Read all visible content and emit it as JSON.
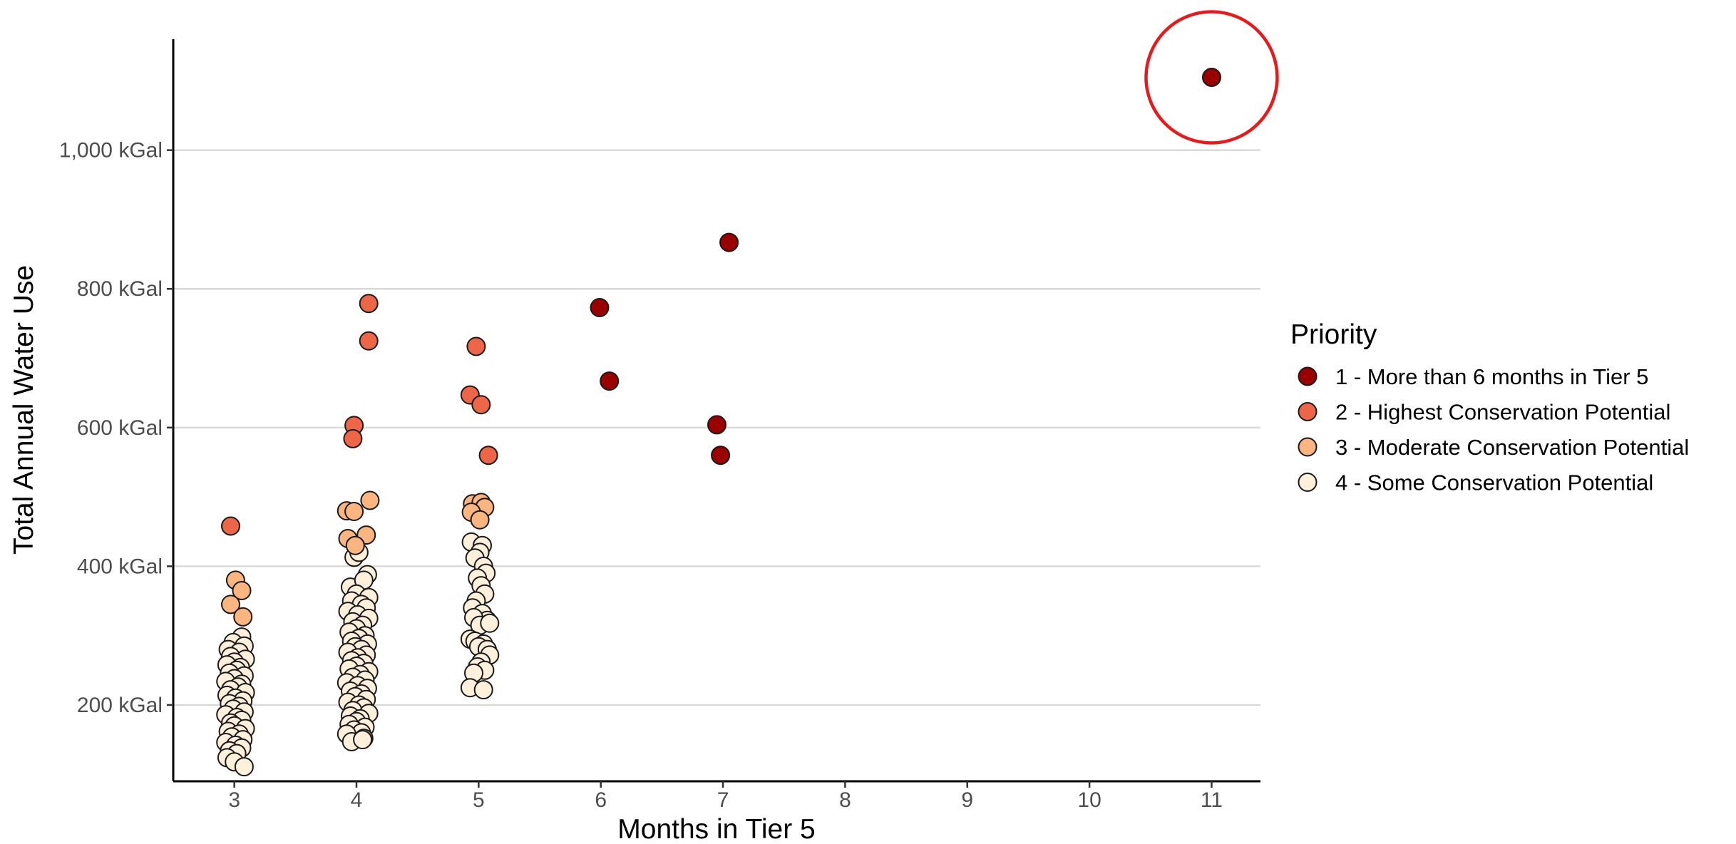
{
  "chart_data": {
    "type": "scatter",
    "title": "",
    "xlabel": "Months in Tier 5",
    "ylabel": "Total Annual Water Use",
    "xlim": [
      2.5,
      11.4
    ],
    "ylim": [
      90,
      1160
    ],
    "x_ticks": [
      3,
      4,
      5,
      6,
      7,
      8,
      9,
      10,
      11
    ],
    "x_tick_labels": [
      "3",
      "4",
      "5",
      "6",
      "7",
      "8",
      "9",
      "10",
      "11"
    ],
    "y_ticks": [
      200,
      400,
      600,
      800,
      1000
    ],
    "y_tick_labels": [
      "200 kGal",
      "400 kGal",
      "600 kGal",
      "800 kGal",
      "1,000 kGal"
    ],
    "grid": "horizontal major lines",
    "legend": {
      "title": "Priority",
      "position": "right",
      "entries": [
        {
          "label": "1 - More than 6 months in Tier 5",
          "color": "#9b0000"
        },
        {
          "label": "2 - Highest Conservation Potential",
          "color": "#ee6648"
        },
        {
          "label": "3 - Moderate Conservation Potential",
          "color": "#fbb581"
        },
        {
          "label": "4 - Some Conservation Potential",
          "color": "#fff0dc"
        }
      ]
    },
    "highlight": {
      "x": 11,
      "y": 1105,
      "color": "#e8191b"
    },
    "series": [
      {
        "name": "1 - More than 6 months in Tier 5",
        "color": "#9b0000",
        "points": [
          [
            11,
            1105
          ],
          [
            7.05,
            867
          ],
          [
            5.99,
            773
          ],
          [
            6.07,
            667
          ],
          [
            6.95,
            604
          ],
          [
            6.98,
            560
          ]
        ]
      },
      {
        "name": "2 - Highest Conservation Potential",
        "color": "#ee6648",
        "points": [
          [
            2.97,
            458
          ],
          [
            4.1,
            779
          ],
          [
            4.1,
            725
          ],
          [
            3.98,
            603
          ],
          [
            3.97,
            584
          ],
          [
            4.98,
            717
          ],
          [
            4.93,
            647
          ],
          [
            5.02,
            633
          ],
          [
            5.08,
            560
          ]
        ]
      },
      {
        "name": "3 - Moderate Conservation Potential",
        "color": "#fbb581",
        "points": [
          [
            3.01,
            380
          ],
          [
            3.06,
            365
          ],
          [
            2.97,
            345
          ],
          [
            3.07,
            327
          ],
          [
            3.92,
            480
          ],
          [
            3.98,
            479
          ],
          [
            4.11,
            495
          ],
          [
            4.08,
            445
          ],
          [
            3.93,
            440
          ],
          [
            3.99,
            430
          ],
          [
            4.95,
            490
          ],
          [
            5.02,
            492
          ],
          [
            5.05,
            485
          ],
          [
            4.94,
            478
          ],
          [
            5.01,
            467
          ]
        ]
      },
      {
        "name": "4 - Some Conservation Potential",
        "color": "#fff0dc",
        "points": [
          [
            3.06,
            298
          ],
          [
            2.99,
            290
          ],
          [
            3.08,
            285
          ],
          [
            2.95,
            280
          ],
          [
            3.04,
            276
          ],
          [
            2.97,
            270
          ],
          [
            3.09,
            266
          ],
          [
            3.0,
            262
          ],
          [
            2.94,
            258
          ],
          [
            3.05,
            254
          ],
          [
            3.02,
            250
          ],
          [
            2.96,
            246
          ],
          [
            3.08,
            242
          ],
          [
            3.0,
            238
          ],
          [
            2.93,
            234
          ],
          [
            3.06,
            230
          ],
          [
            3.03,
            226
          ],
          [
            2.97,
            222
          ],
          [
            3.09,
            218
          ],
          [
            2.94,
            214
          ],
          [
            3.01,
            210
          ],
          [
            3.07,
            206
          ],
          [
            2.96,
            202
          ],
          [
            3.04,
            198
          ],
          [
            2.99,
            194
          ],
          [
            3.08,
            190
          ],
          [
            2.93,
            186
          ],
          [
            3.02,
            182
          ],
          [
            3.06,
            178
          ],
          [
            2.97,
            174
          ],
          [
            3.0,
            170
          ],
          [
            3.09,
            166
          ],
          [
            2.95,
            162
          ],
          [
            3.04,
            158
          ],
          [
            2.98,
            154
          ],
          [
            3.07,
            150
          ],
          [
            2.93,
            146
          ],
          [
            3.01,
            142
          ],
          [
            3.06,
            138
          ],
          [
            2.96,
            134
          ],
          [
            3.02,
            130
          ],
          [
            2.94,
            124
          ],
          [
            3.0,
            118
          ],
          [
            3.08,
            111
          ],
          [
            3.98,
            413
          ],
          [
            4.02,
            420
          ],
          [
            4.09,
            388
          ],
          [
            3.95,
            370
          ],
          [
            4.06,
            380
          ],
          [
            4.0,
            360
          ],
          [
            4.1,
            355
          ],
          [
            3.96,
            350
          ],
          [
            4.04,
            345
          ],
          [
            4.08,
            340
          ],
          [
            3.93,
            335
          ],
          [
            4.01,
            330
          ],
          [
            4.1,
            325
          ],
          [
            3.97,
            320
          ],
          [
            4.05,
            315
          ],
          [
            4.0,
            310
          ],
          [
            3.94,
            305
          ],
          [
            4.07,
            300
          ],
          [
            4.02,
            296
          ],
          [
            3.96,
            292
          ],
          [
            4.09,
            288
          ],
          [
            3.99,
            284
          ],
          [
            4.04,
            280
          ],
          [
            3.93,
            276
          ],
          [
            4.08,
            272
          ],
          [
            4.01,
            268
          ],
          [
            3.96,
            264
          ],
          [
            4.06,
            260
          ],
          [
            4.0,
            256
          ],
          [
            3.94,
            252
          ],
          [
            4.1,
            248
          ],
          [
            4.03,
            244
          ],
          [
            3.97,
            240
          ],
          [
            4.07,
            236
          ],
          [
            3.92,
            232
          ],
          [
            4.01,
            228
          ],
          [
            4.09,
            224
          ],
          [
            3.95,
            220
          ],
          [
            4.04,
            216
          ],
          [
            3.99,
            212
          ],
          [
            4.08,
            208
          ],
          [
            3.93,
            204
          ],
          [
            4.02,
            200
          ],
          [
            4.06,
            196
          ],
          [
            3.97,
            192
          ],
          [
            4.1,
            188
          ],
          [
            3.95,
            184
          ],
          [
            4.03,
            180
          ],
          [
            4.0,
            176
          ],
          [
            3.94,
            172
          ],
          [
            4.07,
            168
          ],
          [
            3.98,
            164
          ],
          [
            4.04,
            160
          ],
          [
            3.92,
            158
          ],
          [
            4.06,
            152
          ],
          [
            3.96,
            147
          ],
          [
            4.05,
            150
          ],
          [
            4.94,
            435
          ],
          [
            5.03,
            430
          ],
          [
            5.01,
            420
          ],
          [
            4.97,
            412
          ],
          [
            5.04,
            400
          ],
          [
            5.06,
            390
          ],
          [
            4.99,
            383
          ],
          [
            5.02,
            372
          ],
          [
            5.05,
            360
          ],
          [
            4.98,
            350
          ],
          [
            4.95,
            340
          ],
          [
            5.03,
            332
          ],
          [
            5.07,
            322
          ],
          [
            4.96,
            326
          ],
          [
            5.01,
            315
          ],
          [
            5.09,
            318
          ],
          [
            4.93,
            295
          ],
          [
            4.97,
            292
          ],
          [
            5.04,
            288
          ],
          [
            5.0,
            284
          ],
          [
            5.07,
            280
          ],
          [
            5.09,
            272
          ],
          [
            5.02,
            262
          ],
          [
            4.99,
            255
          ],
          [
            5.05,
            250
          ],
          [
            4.96,
            246
          ],
          [
            4.93,
            225
          ],
          [
            5.04,
            222
          ]
        ]
      }
    ]
  }
}
